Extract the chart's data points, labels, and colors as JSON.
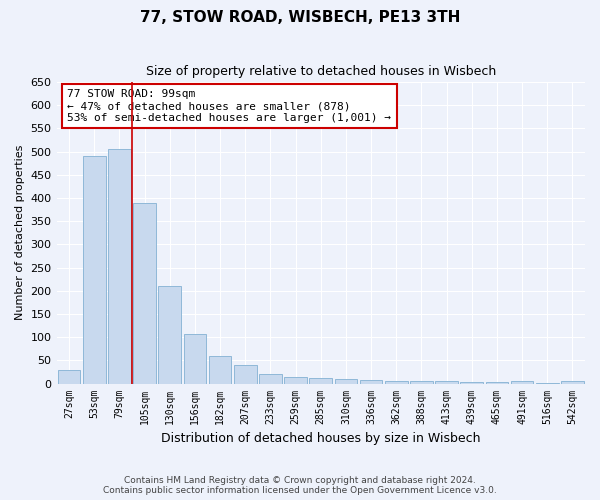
{
  "title": "77, STOW ROAD, WISBECH, PE13 3TH",
  "subtitle": "Size of property relative to detached houses in Wisbech",
  "xlabel": "Distribution of detached houses by size in Wisbech",
  "ylabel": "Number of detached properties",
  "bar_color": "#c8d9ee",
  "bar_edge_color": "#8fb8d8",
  "background_color": "#eef2fb",
  "grid_color": "#ffffff",
  "categories": [
    "27sqm",
    "53sqm",
    "79sqm",
    "105sqm",
    "130sqm",
    "156sqm",
    "182sqm",
    "207sqm",
    "233sqm",
    "259sqm",
    "285sqm",
    "310sqm",
    "336sqm",
    "362sqm",
    "388sqm",
    "413sqm",
    "439sqm",
    "465sqm",
    "491sqm",
    "516sqm",
    "542sqm"
  ],
  "values": [
    30,
    490,
    505,
    390,
    210,
    107,
    60,
    40,
    20,
    15,
    12,
    10,
    8,
    6,
    5,
    5,
    4,
    3,
    5,
    2,
    5
  ],
  "ylim": [
    0,
    650
  ],
  "yticks": [
    0,
    50,
    100,
    150,
    200,
    250,
    300,
    350,
    400,
    450,
    500,
    550,
    600,
    650
  ],
  "vline_color": "#cc0000",
  "annotation_line1": "77 STOW ROAD: 99sqm",
  "annotation_line2": "← 47% of detached houses are smaller (878)",
  "annotation_line3": "53% of semi-detached houses are larger (1,001) →",
  "annotation_box_color": "#ffffff",
  "annotation_box_edge_color": "#cc0000",
  "footer_line1": "Contains HM Land Registry data © Crown copyright and database right 2024.",
  "footer_line2": "Contains public sector information licensed under the Open Government Licence v3.0."
}
